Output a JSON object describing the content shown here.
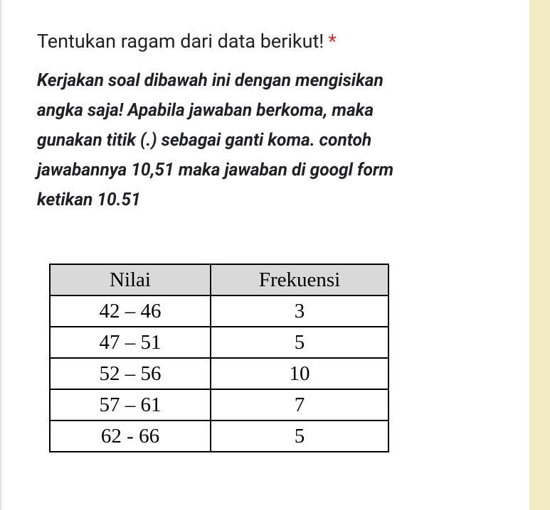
{
  "question": {
    "title": "Tentukan ragam dari data berikut!",
    "required_mark": "*",
    "description_lines": [
      "Kerjakan soal dibawah ini dengan mengisikan",
      "angka saja! Apabila jawaban berkoma, maka",
      "gunakan titik (.) sebagai ganti koma. contoh",
      "jawabannya 10,51 maka jawaban di googl form",
      "ketikan 10.51"
    ]
  },
  "table": {
    "header": [
      "Nilai",
      "Frekuensi"
    ],
    "rows": [
      [
        "42 – 46",
        3
      ],
      [
        "47 – 51",
        5
      ],
      [
        "52 – 56",
        10
      ],
      [
        "57 – 61",
        7
      ],
      [
        "62 - 66",
        5
      ]
    ]
  }
}
